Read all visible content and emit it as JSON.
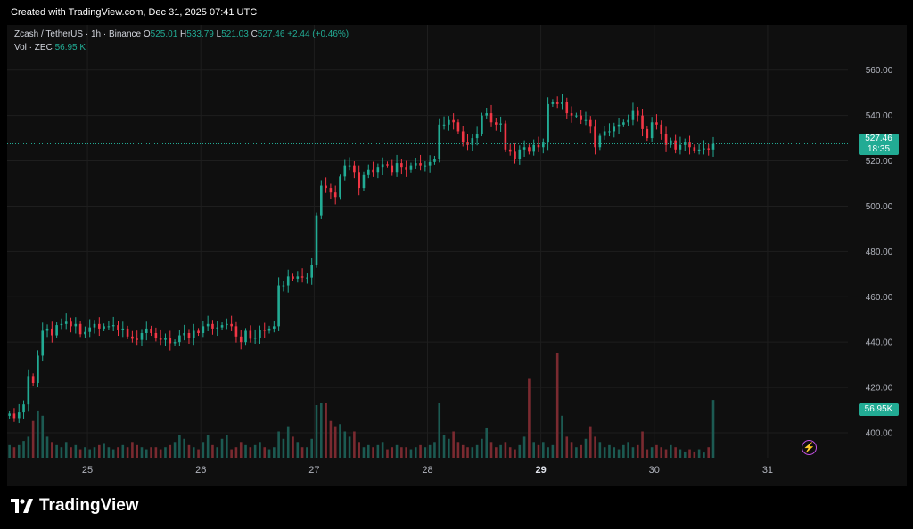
{
  "header": {
    "created": "Created with TradingView.com, Dec 31, 2025 07:41 UTC"
  },
  "legend": {
    "symbol": "Zcash / TetherUS · 1h · Binance",
    "o_label": "O",
    "o_value": "525.01",
    "h_label": "H",
    "h_value": "533.79",
    "l_label": "L",
    "l_value": "521.03",
    "c_label": "C",
    "c_value": "527.46",
    "change": "+2.44 (+0.46%)",
    "vol_label": "Vol · ZEC",
    "vol_value": "56.95 K"
  },
  "price_tag": {
    "price": "527.46",
    "countdown": "18:35"
  },
  "volume_tag": "56.95K",
  "brand": "TradingView",
  "colors": {
    "up": "#22ab94",
    "down": "#f23645",
    "background": "#0f0f0f",
    "grid": "#1e1e1e",
    "text": "#b2b5be"
  },
  "chart_data": {
    "type": "candlestick",
    "symbol": "Zcash / TetherUS",
    "interval": "1h",
    "exchange": "Binance",
    "y_axis_ticks": [
      400,
      420,
      440,
      460,
      480,
      500,
      520,
      540,
      560
    ],
    "ylim": [
      389,
      565
    ],
    "x_ticks": [
      {
        "label": "25",
        "hour": 0,
        "bold": false
      },
      {
        "label": "26",
        "hour": 24,
        "bold": false
      },
      {
        "label": "27",
        "hour": 48,
        "bold": false
      },
      {
        "label": "28",
        "hour": 72,
        "bold": false
      },
      {
        "label": "29",
        "hour": 96,
        "bold": true
      },
      {
        "label": "30",
        "hour": 120,
        "bold": false
      },
      {
        "label": "31",
        "hour": 144,
        "bold": false
      }
    ],
    "hour_range": [
      -17,
      161
    ],
    "closes": [
      408.5,
      406.5,
      409.0,
      412.5,
      425.0,
      422.0,
      434.0,
      445.0,
      446.0,
      443.0,
      447.5,
      448.0,
      449.0,
      447.0,
      448.0,
      443.5,
      444.5,
      446.5,
      448.0,
      446.0,
      447.0,
      447.0,
      447.5,
      445.5,
      446.0,
      442.5,
      441.5,
      441.0,
      444.0,
      446.0,
      444.0,
      442.0,
      441.0,
      442.0,
      439.5,
      440.0,
      443.0,
      444.0,
      442.0,
      445.0,
      444.0,
      447.0,
      448.0,
      446.0,
      446.5,
      447.5,
      448.0,
      447.0,
      442.5,
      440.0,
      445.0,
      441.5,
      442.0,
      445.5,
      445.0,
      446.0,
      447.0,
      465.0,
      465.0,
      469.0,
      468.0,
      469.0,
      468.5,
      468.5,
      474.0,
      496.0,
      509.0,
      508.0,
      506.0,
      504.0,
      513.0,
      518.0,
      518.0,
      515.0,
      508.0,
      514.0,
      516.0,
      515.0,
      517.0,
      518.5,
      518.0,
      515.0,
      519.0,
      517.0,
      516.0,
      518.0,
      519.0,
      518.0,
      518.0,
      519.5,
      521.0,
      536.0,
      536.0,
      538.0,
      537.0,
      533.0,
      528.0,
      527.0,
      530.0,
      532.0,
      540.0,
      541.0,
      537.0,
      536.0,
      536.5,
      525.0,
      524.0,
      521.0,
      525.0,
      526.0,
      524.0,
      527.0,
      526.0,
      528.0,
      545.0,
      546.0,
      545.0,
      546.0,
      541.0,
      540.0,
      540.0,
      538.0,
      538.0,
      535.0,
      526.0,
      531.0,
      533.0,
      533.0,
      535.0,
      536.0,
      537.0,
      538.0,
      542.0,
      540.0,
      534.0,
      530.0,
      537.0,
      536.0,
      532.0,
      527.0,
      529.0,
      525.0,
      527.0,
      528.0,
      526.0,
      524.5,
      525.0,
      525.5,
      525.0,
      527.46
    ],
    "volumes_relative": [
      0.12,
      0.1,
      0.12,
      0.16,
      0.2,
      0.35,
      0.45,
      0.4,
      0.2,
      0.15,
      0.12,
      0.1,
      0.15,
      0.1,
      0.12,
      0.08,
      0.1,
      0.08,
      0.1,
      0.12,
      0.14,
      0.1,
      0.08,
      0.1,
      0.12,
      0.1,
      0.15,
      0.12,
      0.1,
      0.08,
      0.1,
      0.1,
      0.08,
      0.1,
      0.12,
      0.15,
      0.22,
      0.18,
      0.12,
      0.1,
      0.08,
      0.15,
      0.22,
      0.12,
      0.1,
      0.18,
      0.22,
      0.08,
      0.1,
      0.15,
      0.12,
      0.1,
      0.12,
      0.15,
      0.1,
      0.08,
      0.1,
      0.25,
      0.18,
      0.3,
      0.2,
      0.15,
      0.1,
      0.1,
      0.18,
      0.5,
      0.52,
      0.52,
      0.35,
      0.3,
      0.32,
      0.25,
      0.2,
      0.25,
      0.15,
      0.1,
      0.12,
      0.1,
      0.12,
      0.15,
      0.08,
      0.1,
      0.12,
      0.1,
      0.1,
      0.08,
      0.1,
      0.12,
      0.1,
      0.12,
      0.15,
      0.52,
      0.22,
      0.18,
      0.25,
      0.15,
      0.12,
      0.1,
      0.1,
      0.12,
      0.18,
      0.28,
      0.15,
      0.1,
      0.12,
      0.15,
      0.1,
      0.08,
      0.12,
      0.2,
      0.75,
      0.15,
      0.12,
      0.15,
      0.1,
      0.12,
      1.0,
      0.4,
      0.2,
      0.15,
      0.1,
      0.12,
      0.18,
      0.3,
      0.2,
      0.15,
      0.1,
      0.12,
      0.1,
      0.08,
      0.12,
      0.15,
      0.1,
      0.12,
      0.25,
      0.08,
      0.1,
      0.12,
      0.1,
      0.08,
      0.12,
      0.1,
      0.08,
      0.06,
      0.08,
      0.06,
      0.08,
      0.05,
      0.1,
      0.55
    ]
  }
}
